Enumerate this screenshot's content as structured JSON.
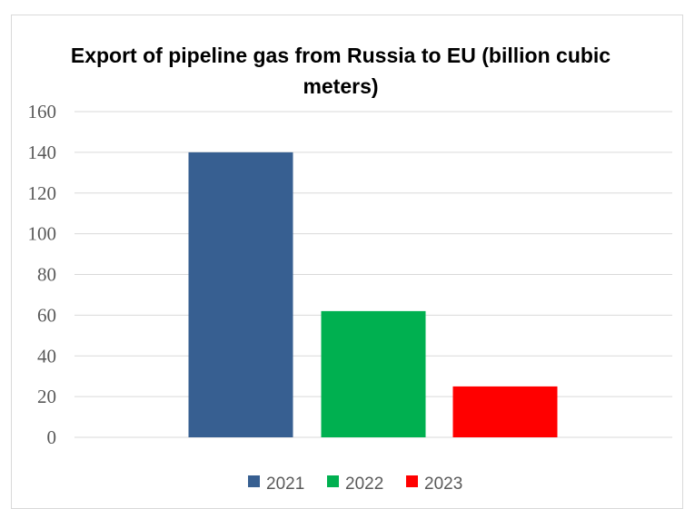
{
  "chart_data": {
    "type": "bar",
    "title": "Export of pipeline gas from Russia to EU (billion cubic meters)",
    "categories": [
      "2021",
      "2022",
      "2023"
    ],
    "values": [
      140,
      62,
      25
    ],
    "colors": [
      "#375f91",
      "#00b050",
      "#ff0000"
    ],
    "yticks": [
      "0",
      "20",
      "40",
      "60",
      "80",
      "100",
      "120",
      "140",
      "160"
    ],
    "ylim": [
      0,
      160
    ],
    "grid": true,
    "legend": "bottom"
  }
}
